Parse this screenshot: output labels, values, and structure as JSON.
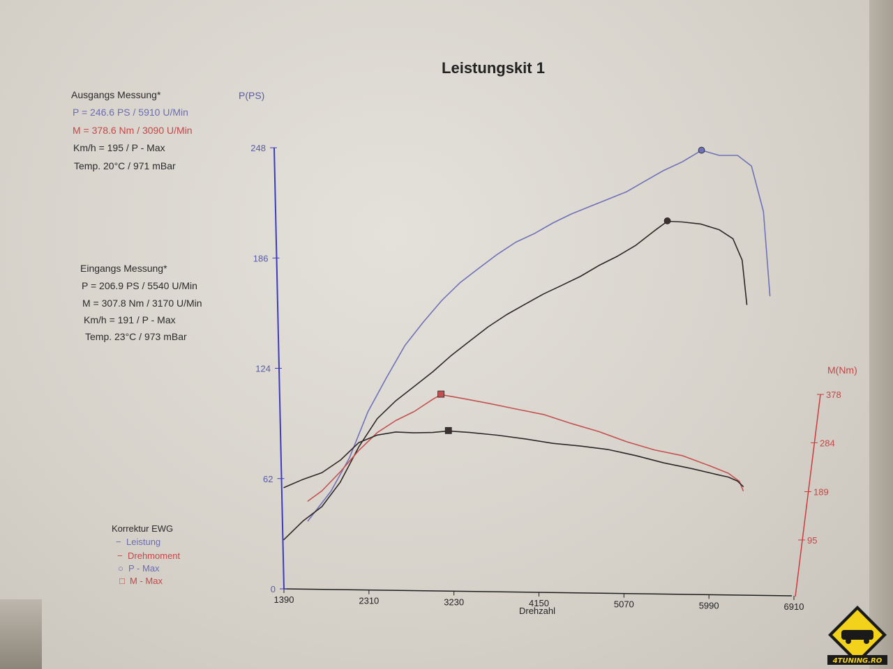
{
  "chart_data": {
    "type": "line",
    "title": "Leistungskit 1",
    "xlabel": "Drehzahl",
    "ylabel_left": "P(PS)",
    "ylabel_right": "M(Nm)",
    "x_ticks": [
      "1390",
      "2310",
      "3230",
      "4150",
      "5070",
      "5990",
      "6910"
    ],
    "y_left_ticks": [
      "0",
      "62",
      "124",
      "186",
      "248"
    ],
    "y_right_ticks": [
      "95",
      "189",
      "284",
      "378"
    ],
    "xlim": [
      1390,
      6910
    ],
    "ylim_left": [
      0,
      248
    ],
    "ylim_right": [
      0,
      378
    ],
    "series": [
      {
        "name": "Leistung",
        "measurement": "ausgang",
        "axis": "left",
        "color": "#7070b8",
        "x": [
          1650,
          1900,
          2100,
          2300,
          2500,
          2700,
          2900,
          3100,
          3300,
          3500,
          3700,
          3900,
          4100,
          4300,
          4500,
          4700,
          4900,
          5100,
          5300,
          5500,
          5700,
          5910,
          6100,
          6300,
          6450,
          6580,
          6650
        ],
        "y": [
          38,
          55,
          74,
          100,
          119,
          137,
          150,
          162,
          172,
          180,
          188,
          195,
          200,
          206,
          211,
          215,
          219,
          223,
          229,
          235,
          240,
          246.6,
          244,
          244,
          238,
          212,
          165
        ]
      },
      {
        "name": "Leistung",
        "measurement": "eingang",
        "axis": "left",
        "color": "#2d2626",
        "x": [
          1390,
          1600,
          1800,
          2000,
          2200,
          2400,
          2600,
          2800,
          3000,
          3200,
          3400,
          3600,
          3800,
          4000,
          4200,
          4400,
          4600,
          4800,
          5000,
          5200,
          5400,
          5540,
          5700,
          5900,
          6100,
          6250,
          6350,
          6400
        ],
        "y": [
          28,
          38,
          46,
          60,
          80,
          96,
          106,
          114,
          122,
          131,
          139,
          147,
          154,
          160,
          166,
          171,
          176,
          182,
          187,
          193,
          201,
          206.9,
          206,
          205,
          202,
          197,
          185,
          160
        ]
      },
      {
        "name": "Drehmoment",
        "measurement": "ausgang",
        "axis": "right",
        "color": "#c45050",
        "x": [
          1650,
          1800,
          2000,
          2200,
          2400,
          2600,
          2800,
          3000,
          3090,
          3300,
          3600,
          3900,
          4200,
          4500,
          4800,
          5100,
          5400,
          5700,
          6000,
          6200,
          6320,
          6360
        ],
        "y": [
          170,
          190,
          228,
          270,
          305,
          328,
          345,
          368,
          378.6,
          370,
          360,
          350,
          340,
          322,
          305,
          285,
          270,
          260,
          240,
          225,
          210,
          190
        ]
      },
      {
        "name": "Drehmoment",
        "measurement": "eingang",
        "axis": "right",
        "color": "#2d2626",
        "x": [
          1390,
          1600,
          1800,
          2000,
          2200,
          2400,
          2600,
          2800,
          3000,
          3170,
          3400,
          3700,
          4000,
          4300,
          4600,
          4900,
          5200,
          5500,
          5800,
          6100,
          6200,
          6300,
          6360
        ],
        "y": [
          198,
          212,
          225,
          250,
          285,
          300,
          306,
          304,
          304,
          307.8,
          303,
          298,
          292,
          284,
          278,
          270,
          258,
          245,
          235,
          222,
          218,
          210,
          198
        ]
      }
    ],
    "markers": [
      {
        "label": "P - Max",
        "shape": "circle",
        "x": 5910,
        "y": 246.6,
        "axis": "left",
        "color": "#7070b8"
      },
      {
        "label": "P - Max",
        "shape": "circle",
        "x": 5540,
        "y": 206.9,
        "axis": "left",
        "color": "#3b3131"
      },
      {
        "label": "M - Max",
        "shape": "square",
        "x": 3090,
        "y": 378.6,
        "axis": "right",
        "color": "#c45050"
      },
      {
        "label": "M - Max",
        "shape": "square",
        "x": 3170,
        "y": 307.8,
        "axis": "right",
        "color": "#3b3131"
      }
    ]
  },
  "info": {
    "ausgang": {
      "heading": "Ausgangs Messung*",
      "p": "P = 246.6 PS / 5910 U/Min",
      "m": "M = 378.6 Nm / 3090 U/Min",
      "kmh": "Km/h = 195 / P - Max",
      "temp": "Temp. 20°C / 971 mBar"
    },
    "eingang": {
      "heading": "Eingangs Messung*",
      "p": "P = 206.9 PS / 5540 U/Min",
      "m": "M = 307.8 Nm / 3170 U/Min",
      "kmh": "Km/h = 191 / P - Max",
      "temp": "Temp. 23°C / 973 mBar"
    }
  },
  "legend": {
    "title": "Korrektur EWG",
    "items": [
      {
        "symbol": "−",
        "label": "Leistung",
        "color": "#6c6cb0"
      },
      {
        "symbol": "−",
        "label": "Drehmoment",
        "color": "#c24848"
      },
      {
        "symbol": "○",
        "label": "P - Max",
        "color": "#6c6cb0"
      },
      {
        "symbol": "□",
        "label": "M - Max",
        "color": "#c24848"
      }
    ]
  },
  "logo": {
    "text": "4TUNING.RO",
    "bg_color": "#f2d21a",
    "text_color": "#1a1a1a"
  },
  "colors": {
    "left_axis": "#3b3bbf",
    "right_axis": "#cc3a3a",
    "axis_black": "#1e1e1e"
  }
}
